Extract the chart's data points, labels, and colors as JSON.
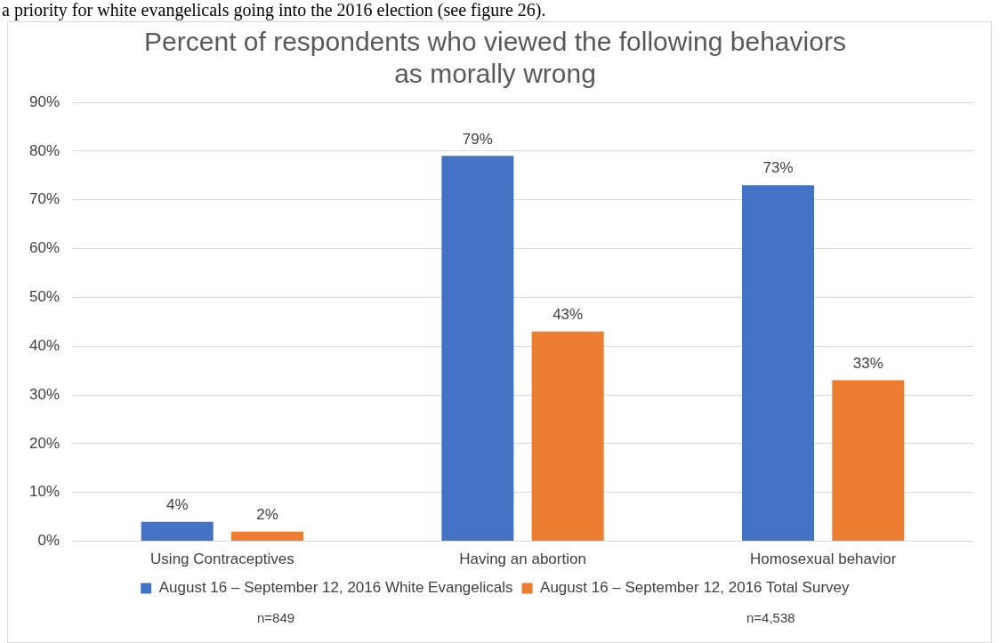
{
  "chart_data": {
    "type": "bar",
    "title": "Percent of respondents who viewed the following behaviors as morally wrong",
    "categories": [
      "Using Contraceptives",
      "Having an abortion",
      "Homosexual behavior"
    ],
    "series": [
      {
        "name": "August 16 – September 12, 2016 White Evangelicals",
        "color": "#4472c4",
        "values": [
          4,
          79,
          73
        ],
        "value_labels": [
          "4%",
          "79%",
          "73%"
        ]
      },
      {
        "name": "August 16 – September 12, 2016 Total Survey",
        "color": "#ed7d31",
        "values": [
          2,
          43,
          33
        ],
        "value_labels": [
          "2%",
          "43%",
          "33%"
        ]
      }
    ],
    "ylim": [
      0,
      90
    ],
    "yticks": [
      {
        "value": 0,
        "label": "0%"
      },
      {
        "value": 10,
        "label": "10%"
      },
      {
        "value": 20,
        "label": "20%"
      },
      {
        "value": 30,
        "label": "30%"
      },
      {
        "value": 40,
        "label": "40%"
      },
      {
        "value": 50,
        "label": "50%"
      },
      {
        "value": 60,
        "label": "60%"
      },
      {
        "value": 70,
        "label": "70%"
      },
      {
        "value": 80,
        "label": "80%"
      },
      {
        "value": 90,
        "label": "90%"
      }
    ],
    "grid": "y",
    "legend": "bottom",
    "annotations": [
      "a priority for white evangelicals going into the 2016 election (see figure 26).",
      "n=849",
      "n=4,538"
    ]
  }
}
